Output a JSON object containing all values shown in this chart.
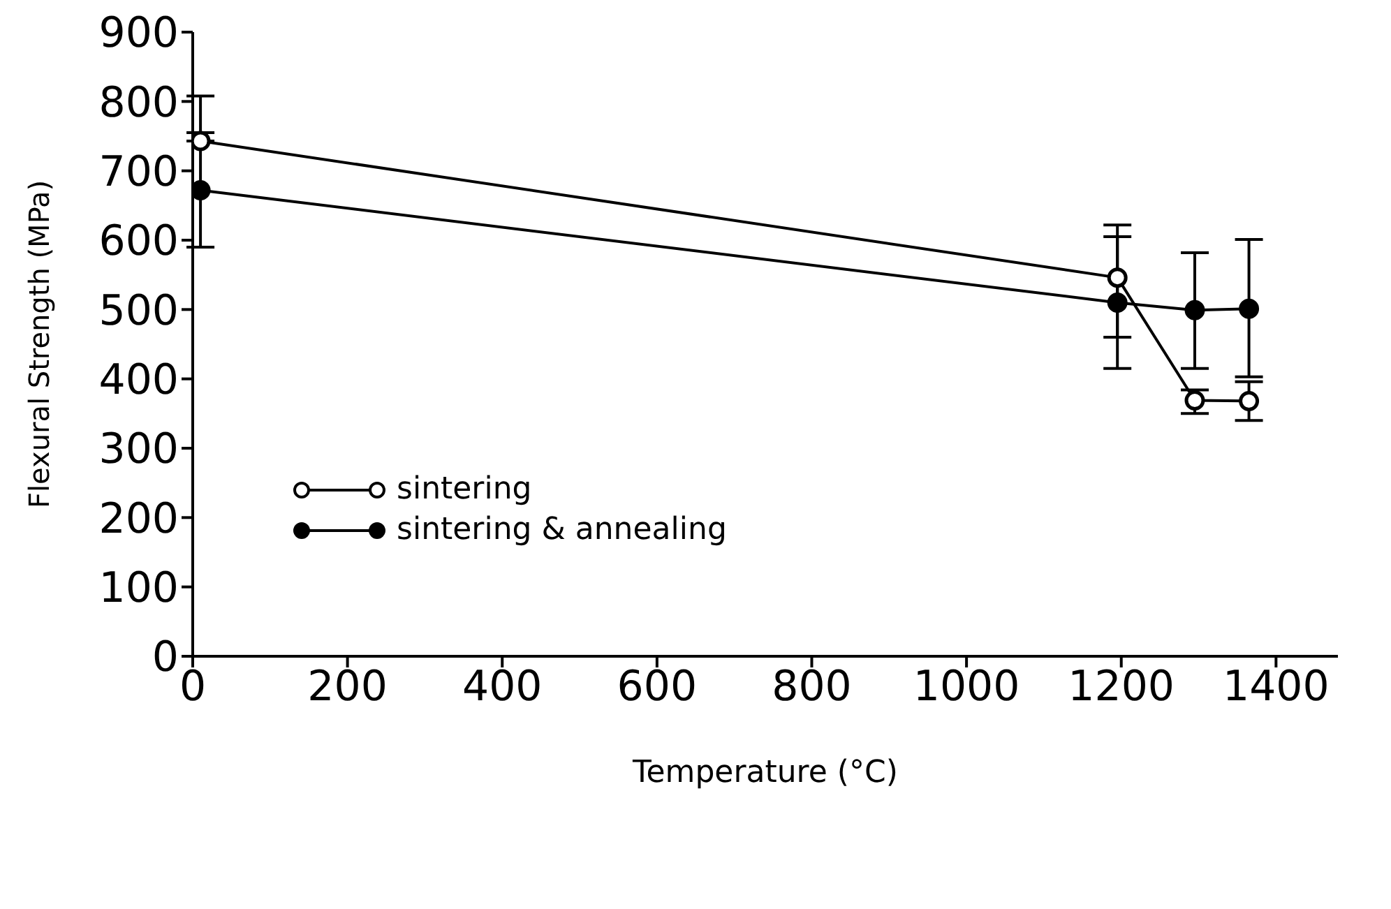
{
  "chart_data": {
    "type": "line",
    "xlabel": "Temperature (°C)",
    "ylabel": "Flexural Strength (MPa)",
    "xlim": [
      0,
      1480
    ],
    "xticks": [
      0,
      200,
      400,
      600,
      800,
      1000,
      1200,
      1400
    ],
    "ylim": [
      0,
      900
    ],
    "yticks": [
      0,
      100,
      200,
      300,
      400,
      500,
      600,
      700,
      800,
      900
    ],
    "grid": false,
    "legend": "left",
    "marker": "circle",
    "line_style": "solid",
    "series": [
      {
        "name": "sintering",
        "color": "#000000",
        "x": [
          10,
          1195,
          1295,
          1365
        ],
        "values": [
          743,
          546,
          369,
          368
        ],
        "errors": [
          [
            743,
            808
          ],
          [
            460,
            622
          ],
          [
            350,
            384
          ],
          [
            340,
            396
          ]
        ]
      },
      {
        "name": "sintering & annealing",
        "color": "#000000",
        "x": [
          10,
          1195,
          1295,
          1365
        ],
        "values": [
          672,
          510,
          499,
          501
        ],
        "errors": [
          [
            590,
            755
          ],
          [
            415,
            605
          ],
          [
            415,
            582
          ],
          [
            403,
            601
          ]
        ]
      }
    ]
  }
}
